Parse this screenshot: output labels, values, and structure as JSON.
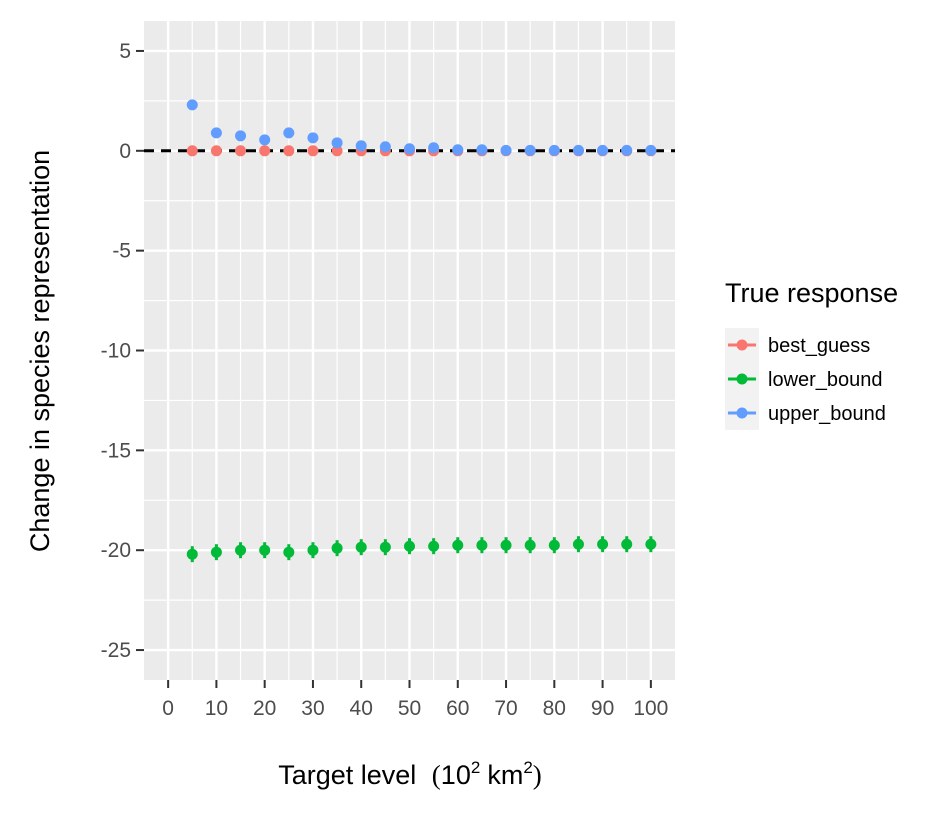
{
  "chart_data": {
    "type": "scatter",
    "title": "",
    "xlabel": "Target level",
    "xlabel_unit": {
      "base": "10",
      "exp": "2",
      "unit": "km",
      "unit_exp": "2"
    },
    "ylabel": "Change in species representation",
    "xlim": [
      -5,
      105
    ],
    "ylim": [
      -26.5,
      6.5
    ],
    "x_ticks": [
      0,
      10,
      20,
      30,
      40,
      50,
      60,
      70,
      80,
      90,
      100
    ],
    "x_tick_labels": [
      "0",
      "10",
      "20",
      "30",
      "40",
      "50",
      "60",
      "70",
      "80",
      "90",
      "100"
    ],
    "y_ticks": [
      5,
      0,
      -5,
      -10,
      -15,
      -20,
      -25
    ],
    "y_tick_labels": [
      "5",
      "0",
      "-5",
      "-10",
      "-15",
      "-20",
      "-25"
    ],
    "grid": true,
    "reference_line": {
      "y": 0,
      "style": "dashed"
    },
    "legend": {
      "title": "True response",
      "position": "right"
    },
    "x": [
      5,
      10,
      15,
      20,
      25,
      30,
      35,
      40,
      45,
      50,
      55,
      60,
      65,
      70,
      75,
      80,
      85,
      90,
      95,
      100
    ],
    "series": [
      {
        "name": "best_guess",
        "color": "#F8766D",
        "values": [
          0,
          0,
          0,
          0,
          0,
          0,
          0,
          0,
          0,
          0,
          0,
          0,
          0,
          0,
          0,
          0,
          0,
          0,
          0,
          0
        ]
      },
      {
        "name": "lower_bound",
        "color": "#00BA38",
        "values": [
          -20.2,
          -20.1,
          -20.0,
          -20.0,
          -20.1,
          -20.0,
          -19.9,
          -19.85,
          -19.85,
          -19.8,
          -19.8,
          -19.75,
          -19.75,
          -19.75,
          -19.75,
          -19.75,
          -19.7,
          -19.7,
          -19.7,
          -19.7
        ],
        "error_low": [
          -20.6,
          -20.5,
          -20.4,
          -20.4,
          -20.5,
          -20.4,
          -20.3,
          -20.25,
          -20.25,
          -20.2,
          -20.2,
          -20.15,
          -20.15,
          -20.15,
          -20.15,
          -20.15,
          -20.1,
          -20.1,
          -20.1,
          -20.1
        ],
        "error_high": [
          -19.8,
          -19.7,
          -19.6,
          -19.6,
          -19.7,
          -19.6,
          -19.5,
          -19.45,
          -19.45,
          -19.4,
          -19.4,
          -19.35,
          -19.35,
          -19.35,
          -19.35,
          -19.35,
          -19.3,
          -19.3,
          -19.3,
          -19.3
        ]
      },
      {
        "name": "upper_bound",
        "color": "#619CFF",
        "values": [
          2.3,
          0.9,
          0.75,
          0.55,
          0.9,
          0.65,
          0.4,
          0.25,
          0.2,
          0.1,
          0.15,
          0.05,
          0.05,
          0.02,
          0.02,
          0.02,
          0.02,
          0.02,
          0.02,
          0.02
        ]
      }
    ]
  }
}
